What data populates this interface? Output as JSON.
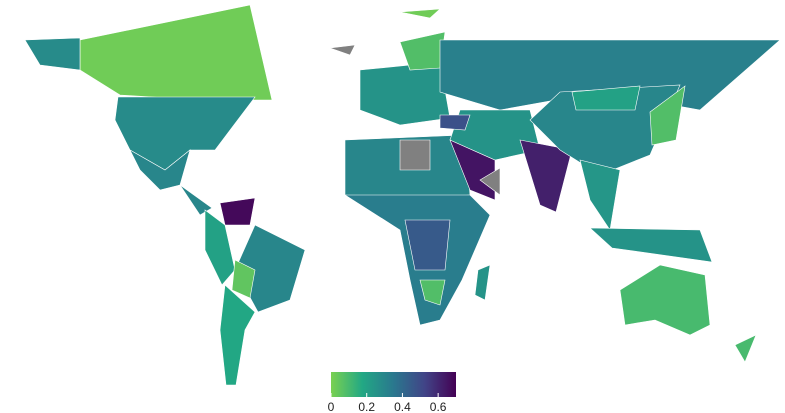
{
  "chart_data": {
    "type": "choropleth",
    "values": [
      0.02,
      0.28,
      0.28,
      0.3,
      0.3,
      0.02,
      0.68,
      0.3,
      0.2,
      0.05,
      0.18,
      0.25,
      0.08,
      0.32,
      null,
      0.3,
      null,
      0.65,
      null,
      0.25,
      0.48,
      0.62,
      0.3,
      0.2,
      0.24,
      0.25,
      0.08,
      0.33,
      0.45,
      0.08,
      0.25,
      0.1,
      0.1
    ],
    "zlim": [
      0,
      0.7
    ],
    "zticks": [
      0,
      0.2,
      0.4,
      0.6
    ],
    "colors": [
      "#7ad151",
      "#22a884",
      "#2a788e",
      "#414487",
      "#440154"
    ],
    "no_data_color": "#808080"
  }
}
